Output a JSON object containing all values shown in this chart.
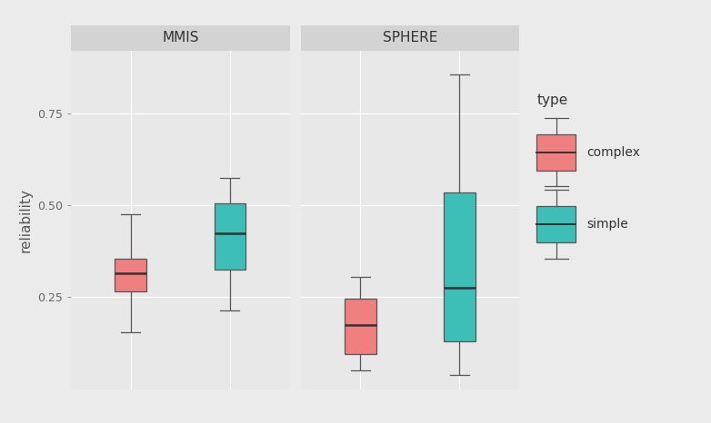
{
  "panels": [
    "MMIS",
    "SPHERE"
  ],
  "types": [
    "complex",
    "simple"
  ],
  "colors": {
    "complex": "#F08080",
    "simple": "#3DBFB8"
  },
  "box_data": {
    "MMIS": {
      "complex": {
        "whisker_low": 0.155,
        "q1": 0.265,
        "median": 0.315,
        "q3": 0.355,
        "whisker_high": 0.475
      },
      "simple": {
        "whisker_low": 0.215,
        "q1": 0.325,
        "median": 0.425,
        "q3": 0.505,
        "whisker_high": 0.575
      }
    },
    "SPHERE": {
      "complex": {
        "whisker_low": 0.05,
        "q1": 0.095,
        "median": 0.175,
        "q3": 0.245,
        "whisker_high": 0.305
      },
      "simple": {
        "whisker_low": 0.04,
        "q1": 0.13,
        "median": 0.275,
        "q3": 0.535,
        "whisker_high": 0.855
      }
    }
  },
  "ylim": [
    0.0,
    0.92
  ],
  "yticks": [
    0.25,
    0.5,
    0.75
  ],
  "ylabel": "reliability",
  "background_color": "#EBEBEB",
  "panel_bg_color": "#E8E8E8",
  "panel_header_color": "#D3D3D3",
  "grid_color": "#FFFFFF",
  "box_width": 0.32,
  "legend_title": "type",
  "title_fontsize": 11,
  "axis_fontsize": 10,
  "tick_fontsize": 9,
  "x_positions": {
    "complex": 1.0,
    "simple": 2.0
  },
  "xlim": [
    0.4,
    2.6
  ]
}
